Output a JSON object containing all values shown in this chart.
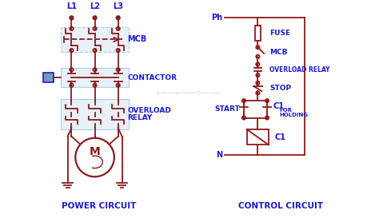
{
  "bg_color": "#ffffff",
  "dark_red": "#8B1a1a",
  "blue": "#1a1acd",
  "light_blue_fill": "#6699cc",
  "title_power": "POWER CIRCUIT",
  "title_control": "CONTROL CIRCUIT",
  "watermark": "InstrumentationTools.com"
}
